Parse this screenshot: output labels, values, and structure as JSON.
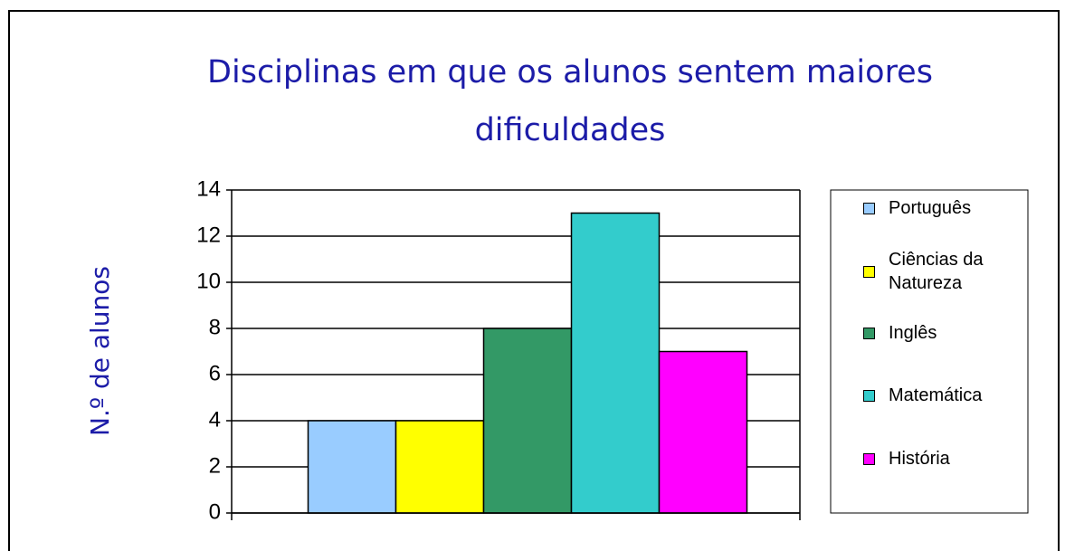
{
  "chart_data": {
    "type": "bar",
    "title": "Disciplinas em que os alunos sentem maiores dificuldades",
    "y_label": "N.º de alunos",
    "categories": [
      null
    ],
    "series": [
      {
        "name": "Português",
        "color": "#99ccff",
        "values": [
          4
        ]
      },
      {
        "name": "Ciências da Natureza",
        "color": "#ffff00",
        "values": [
          4
        ]
      },
      {
        "name": "Inglês",
        "color": "#339966",
        "values": [
          8
        ]
      },
      {
        "name": "Matemática",
        "color": "#33cccc",
        "values": [
          13
        ]
      },
      {
        "name": "História",
        "color": "#ff00ff",
        "values": [
          7
        ]
      }
    ],
    "ylim": [
      0,
      14
    ],
    "yticks": [
      0,
      2,
      4,
      6,
      8,
      10,
      12,
      14
    ],
    "grid": true,
    "legend": "right"
  }
}
